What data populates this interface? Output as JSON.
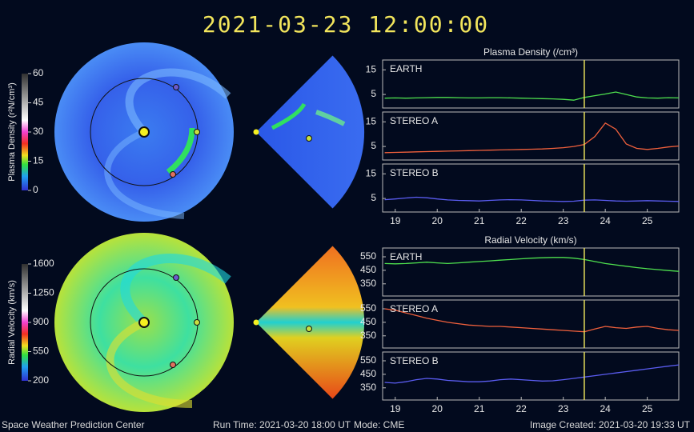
{
  "timestamp": "2021-03-23  12:00:00",
  "footer": {
    "left": "Space Weather Prediction Center",
    "run_time": "Run Time: 2021-03-20 18:00 UT",
    "mode": "Mode: CME",
    "created": "Image Created: 2021-03-20 19:33 UT"
  },
  "colorbars": [
    {
      "label": "Plasma Density (r²N/cm³)",
      "ticks": [
        0,
        15,
        30,
        45,
        60
      ]
    },
    {
      "label": "Radial Velocity (km/s)",
      "ticks": [
        200,
        550,
        900,
        1250,
        1600
      ]
    }
  ],
  "chart_data": [
    {
      "type": "line",
      "title": "Plasma Density (/cm³)",
      "xlim": [
        18.7,
        25.75
      ],
      "ylim": [
        -0.5,
        19
      ],
      "yticks": [
        5,
        15
      ],
      "grid": false,
      "x": [
        18.75,
        19,
        19.25,
        19.5,
        19.75,
        20,
        20.25,
        20.5,
        20.75,
        21,
        21.25,
        21.5,
        21.75,
        22,
        22.25,
        22.5,
        22.75,
        23,
        23.25,
        23.5,
        23.75,
        24,
        24.25,
        24.5,
        24.75,
        25,
        25.25,
        25.5,
        25.75
      ],
      "series": [
        {
          "name": "EARTH",
          "color": "#4ee04e",
          "values": [
            3.5,
            3.6,
            3.5,
            3.6,
            3.7,
            3.8,
            3.8,
            3.7,
            3.6,
            3.6,
            3.7,
            3.7,
            3.6,
            3.5,
            3.4,
            3.3,
            3.2,
            3.0,
            2.7,
            3.8,
            4.5,
            5.2,
            6.0,
            5.0,
            4.0,
            3.6,
            3.5,
            3.7,
            3.6
          ]
        }
      ],
      "vline": {
        "x": 23.5,
        "color": "#e8e05a"
      }
    },
    {
      "type": "line",
      "xlim": [
        18.7,
        25.75
      ],
      "ylim": [
        -0.5,
        19
      ],
      "yticks": [
        5,
        15
      ],
      "grid": false,
      "x": [
        18.75,
        19,
        19.25,
        19.5,
        19.75,
        20,
        20.25,
        20.5,
        20.75,
        21,
        21.25,
        21.5,
        21.75,
        22,
        22.25,
        22.5,
        22.75,
        23,
        23.25,
        23.5,
        23.75,
        24,
        24.25,
        24.5,
        24.75,
        25,
        25.25,
        25.5,
        25.75
      ],
      "series": [
        {
          "name": "STEREO A",
          "color": "#f0603c",
          "values": [
            2.5,
            2.6,
            2.7,
            2.8,
            2.9,
            3.0,
            3.1,
            3.2,
            3.3,
            3.4,
            3.5,
            3.6,
            3.7,
            3.8,
            3.9,
            4.0,
            4.2,
            4.5,
            5.0,
            5.8,
            9,
            14.5,
            12,
            6,
            4.2,
            3.8,
            4.2,
            4.8,
            5.2
          ]
        }
      ],
      "vline": {
        "x": 23.5,
        "color": "#e8e05a"
      }
    },
    {
      "type": "line",
      "xlim": [
        18.7,
        25.75
      ],
      "ylim": [
        -0.5,
        19
      ],
      "yticks": [
        5,
        15
      ],
      "xticks": [
        19,
        20,
        21,
        22,
        23,
        24,
        25
      ],
      "grid": false,
      "x": [
        18.75,
        19,
        19.25,
        19.5,
        19.75,
        20,
        20.25,
        20.5,
        20.75,
        21,
        21.25,
        21.5,
        21.75,
        22,
        22.25,
        22.5,
        22.75,
        23,
        23.25,
        23.5,
        23.75,
        24,
        24.25,
        24.5,
        24.75,
        25,
        25.25,
        25.5,
        25.75
      ],
      "series": [
        {
          "name": "STEREO B",
          "color": "#5a5cf0",
          "values": [
            4.5,
            4.8,
            5.2,
            5.5,
            5.3,
            4.8,
            4.4,
            4.2,
            4.1,
            4.0,
            4.2,
            4.4,
            4.5,
            4.4,
            4.2,
            4.0,
            3.9,
            3.8,
            3.9,
            4.3,
            4.4,
            4.2,
            4.0,
            3.9,
            4.0,
            4.1,
            4.0,
            3.9,
            3.8
          ]
        }
      ],
      "vline": {
        "x": 23.5,
        "color": "#e8e05a"
      }
    },
    {
      "type": "line",
      "title": "Radial Velocity (km/s)",
      "xlim": [
        18.7,
        25.75
      ],
      "ylim": [
        260,
        615
      ],
      "yticks": [
        350,
        450,
        550
      ],
      "grid": false,
      "x": [
        18.75,
        19,
        19.25,
        19.5,
        19.75,
        20,
        20.25,
        20.5,
        20.75,
        21,
        21.25,
        21.5,
        21.75,
        22,
        22.25,
        22.5,
        22.75,
        23,
        23.25,
        23.5,
        23.75,
        24,
        24.25,
        24.5,
        24.75,
        25,
        25.25,
        25.5,
        25.75
      ],
      "series": [
        {
          "name": "EARTH",
          "color": "#4ee04e",
          "values": [
            500,
            498,
            500,
            505,
            510,
            505,
            500,
            505,
            510,
            515,
            520,
            525,
            530,
            535,
            540,
            543,
            545,
            545,
            540,
            530,
            515,
            500,
            490,
            480,
            470,
            462,
            455,
            448,
            442
          ]
        }
      ],
      "vline": {
        "x": 23.5,
        "color": "#e8e05a"
      }
    },
    {
      "type": "line",
      "xlim": [
        18.7,
        25.75
      ],
      "ylim": [
        260,
        615
      ],
      "yticks": [
        350,
        450,
        550
      ],
      "grid": false,
      "x": [
        18.75,
        19,
        19.25,
        19.5,
        19.75,
        20,
        20.25,
        20.5,
        20.75,
        21,
        21.25,
        21.5,
        21.75,
        22,
        22.25,
        22.5,
        22.75,
        23,
        23.25,
        23.5,
        23.75,
        24,
        24.25,
        24.5,
        24.75,
        25,
        25.25,
        25.5,
        25.75
      ],
      "series": [
        {
          "name": "STEREO A",
          "color": "#f0603c",
          "values": [
            550,
            540,
            520,
            500,
            480,
            465,
            450,
            440,
            430,
            425,
            420,
            420,
            415,
            410,
            405,
            400,
            395,
            390,
            385,
            380,
            400,
            420,
            410,
            405,
            415,
            420,
            405,
            395,
            390
          ]
        }
      ],
      "vline": {
        "x": 23.5,
        "color": "#e8e05a"
      }
    },
    {
      "type": "line",
      "xlim": [
        18.7,
        25.75
      ],
      "ylim": [
        260,
        615
      ],
      "yticks": [
        350,
        450,
        550
      ],
      "xticks": [
        19,
        20,
        21,
        22,
        23,
        24,
        25
      ],
      "grid": false,
      "x": [
        18.75,
        19,
        19.25,
        19.5,
        19.75,
        20,
        20.25,
        20.5,
        20.75,
        21,
        21.25,
        21.5,
        21.75,
        22,
        22.25,
        22.5,
        22.75,
        23,
        23.25,
        23.5,
        23.75,
        24,
        24.25,
        24.5,
        24.75,
        25,
        25.25,
        25.5,
        25.75
      ],
      "series": [
        {
          "name": "STEREO B",
          "color": "#5a5cf0",
          "values": [
            390,
            385,
            395,
            410,
            420,
            415,
            405,
            400,
            395,
            395,
            400,
            410,
            415,
            410,
            405,
            400,
            402,
            410,
            420,
            430,
            440,
            450,
            460,
            470,
            480,
            490,
            500,
            510,
            520
          ]
        }
      ],
      "vline": {
        "x": 23.5,
        "color": "#e8e05a"
      }
    }
  ]
}
